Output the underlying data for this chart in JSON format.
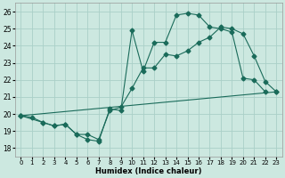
{
  "xlabel": "Humidex (Indice chaleur)",
  "bg_color": "#cce8e0",
  "grid_color": "#aad0c8",
  "line_color": "#1a6b5a",
  "xlim": [
    -0.5,
    23.5
  ],
  "ylim": [
    17.5,
    26.5
  ],
  "yticks": [
    18,
    19,
    20,
    21,
    22,
    23,
    24,
    25,
    26
  ],
  "xticks": [
    0,
    1,
    2,
    3,
    4,
    5,
    6,
    7,
    8,
    9,
    10,
    11,
    12,
    13,
    14,
    15,
    16,
    17,
    18,
    19,
    20,
    21,
    22,
    23
  ],
  "line1_x": [
    0,
    1,
    2,
    3,
    4,
    5,
    6,
    7,
    8,
    9,
    10,
    11,
    12,
    13,
    14,
    15,
    16,
    17,
    18,
    19,
    20,
    21,
    22
  ],
  "line1_y": [
    19.9,
    19.8,
    19.5,
    19.3,
    19.4,
    18.8,
    18.5,
    18.4,
    20.3,
    20.2,
    24.9,
    22.5,
    24.2,
    24.2,
    25.8,
    25.9,
    25.8,
    25.1,
    25.0,
    24.8,
    22.1,
    22.0,
    21.3
  ],
  "line2_x": [
    0,
    2,
    3,
    4,
    5,
    6,
    7,
    8,
    9,
    10,
    11,
    12,
    13,
    14,
    15,
    16,
    17,
    18,
    19,
    20,
    21,
    22,
    23
  ],
  "line2_y": [
    19.9,
    19.5,
    19.3,
    19.4,
    18.8,
    18.8,
    18.5,
    20.2,
    20.4,
    21.5,
    22.7,
    22.7,
    23.5,
    23.4,
    23.7,
    24.2,
    24.5,
    25.1,
    25.0,
    24.7,
    23.4,
    21.9,
    21.3
  ],
  "line3_x": [
    0,
    23
  ],
  "line3_y": [
    19.9,
    21.3
  ]
}
